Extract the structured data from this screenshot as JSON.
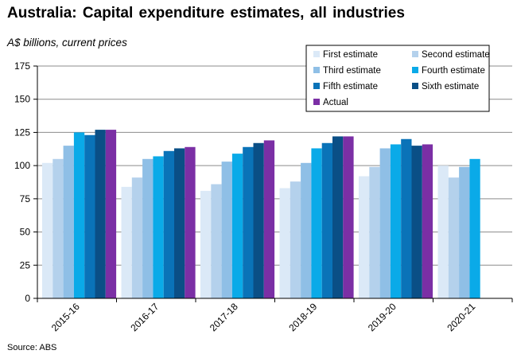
{
  "title": "Australia: Capital expenditure estimates, all industries",
  "subtitle": "A$ billions, current prices",
  "source": "Source: ABS",
  "chart_data": {
    "type": "bar",
    "title": "Australia: Capital expenditure estimates, all industries",
    "ylabel": "A$ billions, current prices",
    "xlabel": "",
    "ylim": [
      0,
      175
    ],
    "yticks": [
      "0",
      "25",
      "50",
      "75",
      "100",
      "125",
      "150",
      "175"
    ],
    "grid": true,
    "legend_position": "top-right",
    "categories": [
      "2015-16",
      "2016-17",
      "2017-18",
      "2018-19",
      "2019-20",
      "2020-21"
    ],
    "series": [
      {
        "name": "First estimate",
        "color": "#dbe9f7",
        "values": [
          102,
          84,
          81,
          83,
          92,
          100
        ]
      },
      {
        "name": "Second estimate",
        "color": "#b4d1ec",
        "values": [
          105,
          91,
          86,
          88,
          99,
          91
        ]
      },
      {
        "name": "Third estimate",
        "color": "#8fbfe6",
        "values": [
          115,
          105,
          103,
          102,
          113,
          99
        ]
      },
      {
        "name": "Fourth estimate",
        "color": "#0aaae8",
        "values": [
          125,
          107,
          109,
          113,
          116,
          105
        ]
      },
      {
        "name": "Fifth estimate",
        "color": "#0a73b8",
        "values": [
          123,
          111,
          114,
          117,
          120,
          null
        ]
      },
      {
        "name": "Sixth estimate",
        "color": "#0a4f86",
        "values": [
          127,
          113,
          117,
          122,
          115,
          null
        ]
      },
      {
        "name": "Actual",
        "color": "#7b2fa5",
        "values": [
          127,
          114,
          119,
          122,
          116,
          null
        ]
      }
    ]
  }
}
